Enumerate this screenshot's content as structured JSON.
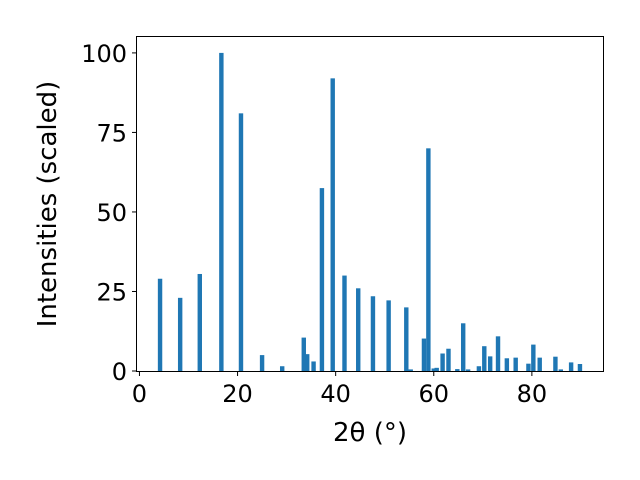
{
  "chart_data": {
    "type": "bar",
    "title": "",
    "xlabel": "2θ (°)",
    "ylabel": "Intensities (scaled)",
    "xlim": [
      -0.5,
      94.5
    ],
    "ylim": [
      0,
      105
    ],
    "xticks": [
      0,
      20,
      40,
      60,
      80
    ],
    "yticks": [
      0,
      25,
      50,
      75,
      100
    ],
    "grid": false,
    "bar_color": "#1f77b4",
    "bar_width": 0.9,
    "x": [
      4.2,
      8.3,
      12.3,
      16.7,
      20.7,
      25.0,
      29.1,
      33.5,
      34.2,
      35.5,
      37.2,
      39.4,
      41.8,
      44.6,
      47.6,
      50.8,
      54.4,
      55.3,
      58.0,
      58.9,
      60.0,
      60.6,
      61.8,
      63.0,
      64.8,
      66.0,
      67.0,
      69.2,
      70.3,
      71.5,
      73.1,
      74.9,
      76.7,
      79.3,
      80.3,
      81.6,
      84.8,
      85.9,
      88.0,
      89.8
    ],
    "values": [
      29,
      23,
      30.5,
      100,
      81,
      5,
      1.5,
      10.5,
      5.3,
      3,
      57.5,
      92,
      30,
      26,
      23.5,
      22.2,
      20,
      0.5,
      10.2,
      70,
      0.8,
      1,
      5.5,
      7,
      0.6,
      15,
      0.5,
      1.5,
      7.8,
      4.6,
      10.9,
      4,
      4.2,
      2.3,
      8.3,
      4.2,
      4.5,
      0.5,
      2.7,
      2.2
    ]
  }
}
